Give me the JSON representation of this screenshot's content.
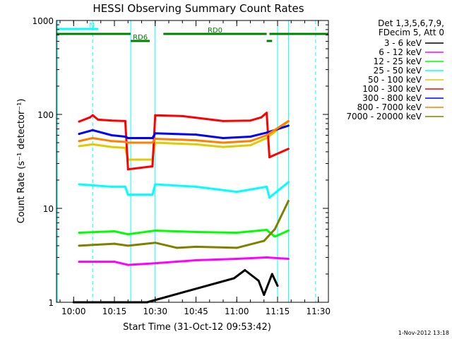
{
  "chart_data": {
    "type": "line",
    "title": "HESSI Observing Summary Count Rates",
    "xlabel": "Start Time (31-Oct-12 09:53:42)",
    "ylabel": "Count Rate (s⁻¹ detector⁻¹)",
    "y_scale": "log",
    "ylim": [
      1,
      1000
    ],
    "xlim": [
      "09:53:42",
      "11:33:42"
    ],
    "x_ticks": [
      "10:00",
      "10:15",
      "10:30",
      "10:45",
      "11:00",
      "11:15",
      "11:30"
    ],
    "y_ticks": [
      "1",
      "10",
      "100",
      "1000"
    ],
    "legend_position": "right",
    "legend_header": [
      "Det 1,3,5,6,7,9,",
      "FDecim 5, Att 0"
    ],
    "footer_date": "1-Nov-2012 13:18",
    "series": [
      {
        "name": "3 - 6 keV",
        "color": "#000000",
        "points": [
          [
            "10:00",
            1.0
          ],
          [
            "10:27",
            1.0
          ],
          [
            "10:59",
            1.8
          ],
          [
            "11:03",
            2.2
          ],
          [
            "11:08",
            1.7
          ],
          [
            "11:10",
            1.2
          ],
          [
            "11:13",
            2.0
          ],
          [
            "11:15",
            1.5
          ]
        ]
      },
      {
        "name": "6 - 12 keV",
        "color": "#ff00ff",
        "points": [
          [
            "10:02",
            2.7
          ],
          [
            "10:15",
            2.7
          ],
          [
            "10:20",
            2.5
          ],
          [
            "10:30",
            2.6
          ],
          [
            "10:45",
            2.8
          ],
          [
            "11:00",
            2.9
          ],
          [
            "11:11",
            3.0
          ],
          [
            "11:19",
            2.9
          ]
        ]
      },
      {
        "name": "12 - 25 keV",
        "color": "#00ff00",
        "points": [
          [
            "10:02",
            5.5
          ],
          [
            "10:15",
            5.7
          ],
          [
            "10:20",
            5.3
          ],
          [
            "10:30",
            5.8
          ],
          [
            "10:45",
            5.6
          ],
          [
            "11:00",
            5.5
          ],
          [
            "11:11",
            5.9
          ],
          [
            "11:14",
            5.0
          ],
          [
            "11:19",
            5.8
          ]
        ]
      },
      {
        "name": "25 - 50 keV",
        "color": "#00ffff",
        "points": [
          [
            "10:02",
            18.0
          ],
          [
            "10:14",
            17.0
          ],
          [
            "10:19",
            17.0
          ],
          [
            "10:20",
            14.0
          ],
          [
            "10:29",
            14.0
          ],
          [
            "10:30",
            18.0
          ],
          [
            "10:45",
            17.0
          ],
          [
            "11:00",
            15.0
          ],
          [
            "11:11",
            17.0
          ],
          [
            "11:12",
            13.0
          ],
          [
            "11:19",
            19.0
          ]
        ]
      },
      {
        "name": "50 - 100 keV",
        "color": "#ddcc00",
        "points": [
          [
            "10:02",
            46.0
          ],
          [
            "10:07",
            48.0
          ],
          [
            "10:14",
            45.0
          ],
          [
            "10:19",
            44.0
          ],
          [
            "10:20",
            33.0
          ],
          [
            "10:29",
            33.0
          ],
          [
            "10:30",
            50.0
          ],
          [
            "10:45",
            48.0
          ],
          [
            "10:55",
            45.0
          ],
          [
            "11:05",
            47.0
          ],
          [
            "11:11",
            56.0
          ],
          [
            "11:19",
            84.0
          ]
        ]
      },
      {
        "name": "100 - 300 keV",
        "color": "#ff0000",
        "points": [
          [
            "10:02",
            84.0
          ],
          [
            "10:06",
            93.0
          ],
          [
            "10:07",
            98.0
          ],
          [
            "10:09",
            88.0
          ],
          [
            "10:14",
            86.0
          ],
          [
            "10:19",
            85.0
          ],
          [
            "10:20",
            26.0
          ],
          [
            "10:29",
            28.0
          ],
          [
            "10:30",
            98.0
          ],
          [
            "10:40",
            96.0
          ],
          [
            "10:55",
            85.0
          ],
          [
            "11:05",
            86.0
          ],
          [
            "11:09",
            93.0
          ],
          [
            "11:11",
            104.0
          ],
          [
            "11:12",
            35.0
          ],
          [
            "11:19",
            43.0
          ]
        ]
      },
      {
        "name": "300 - 800 keV",
        "color": "#0000ff",
        "points": [
          [
            "10:02",
            62.0
          ],
          [
            "10:07",
            68.0
          ],
          [
            "10:14",
            60.0
          ],
          [
            "10:19",
            58.0
          ],
          [
            "10:20",
            56.0
          ],
          [
            "10:29",
            56.0
          ],
          [
            "10:30",
            63.0
          ],
          [
            "10:45",
            61.0
          ],
          [
            "10:55",
            56.0
          ],
          [
            "11:05",
            58.0
          ],
          [
            "11:11",
            64.0
          ],
          [
            "11:19",
            76.0
          ]
        ]
      },
      {
        "name": "800 - 7000 keV",
        "color": "#ff8000",
        "points": [
          [
            "10:02",
            52.0
          ],
          [
            "10:07",
            56.0
          ],
          [
            "10:14",
            52.0
          ],
          [
            "10:19",
            51.0
          ],
          [
            "10:20",
            50.0
          ],
          [
            "10:29",
            50.0
          ],
          [
            "10:30",
            55.0
          ],
          [
            "10:45",
            53.0
          ],
          [
            "10:55",
            50.0
          ],
          [
            "11:05",
            52.0
          ],
          [
            "11:11",
            60.0
          ],
          [
            "11:19",
            85.0
          ]
        ]
      },
      {
        "name": "7000 - 20000 keV",
        "color": "#808000",
        "points": [
          [
            "10:02",
            4.0
          ],
          [
            "10:15",
            4.2
          ],
          [
            "10:20",
            4.0
          ],
          [
            "10:30",
            4.3
          ],
          [
            "10:38",
            3.8
          ],
          [
            "10:45",
            3.9
          ],
          [
            "11:00",
            3.8
          ],
          [
            "11:10",
            4.5
          ],
          [
            "11:14",
            6.0
          ],
          [
            "11:19",
            12.0
          ]
        ]
      }
    ],
    "annotations": [
      {
        "label": "N",
        "color": "#00ffff",
        "segments": [
          [
            "09:53:42",
            "10:09"
          ]
        ]
      },
      {
        "label": "RD0",
        "color": "#008000",
        "segments": [
          [
            "09:53:42",
            "10:21"
          ],
          [
            "10:33",
            "11:11"
          ],
          [
            "11:12",
            "11:33:42"
          ]
        ]
      },
      {
        "label": "RD6",
        "color": "#008000",
        "segments": [
          [
            "10:21",
            "10:28"
          ],
          [
            "11:11",
            "11:13"
          ]
        ]
      }
    ],
    "solid_lines": [
      "09:54",
      "10:21",
      "10:30",
      "11:15",
      "11:19"
    ],
    "dashed_lines": [
      "10:07",
      "11:29"
    ]
  }
}
